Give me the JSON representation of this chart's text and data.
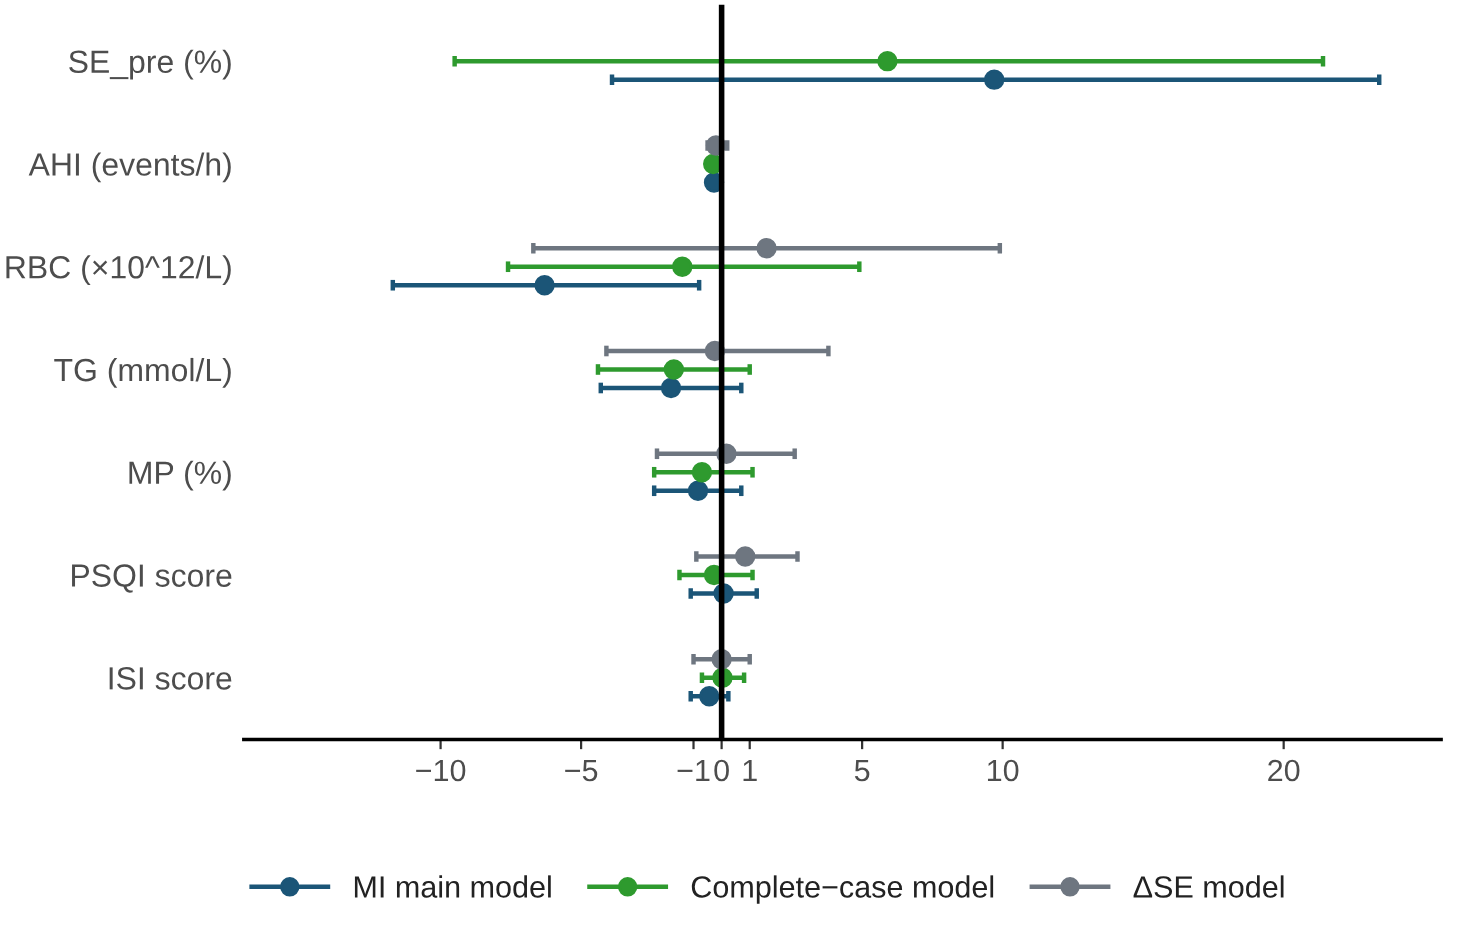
{
  "chart_data": {
    "type": "scatter",
    "orientation": "horizontal",
    "categories": [
      "SE_pre (%)",
      "AHI (events/h)",
      "RBC (×10^12/L)",
      "TG (mmol/L)",
      "MP (%)",
      "PSQI score",
      "ISI score"
    ],
    "series": [
      {
        "name": "MI main model",
        "color": "#1b5577",
        "values": [
          9.7,
          -0.27,
          -6.3,
          -1.8,
          -0.84,
          0.07,
          -0.44
        ],
        "errors": [
          [
            -3.9,
            23.4
          ],
          null,
          [
            -11.7,
            -0.8
          ],
          [
            -4.3,
            0.7
          ],
          [
            -2.4,
            0.7
          ],
          [
            -1.1,
            1.25
          ],
          [
            -1.1,
            0.24
          ]
        ]
      },
      {
        "name": "Complete−case model",
        "color": "#2e9a2e",
        "values": [
          5.9,
          -0.3,
          -1.4,
          -1.7,
          -0.7,
          -0.27,
          0.03
        ],
        "errors": [
          [
            -9.5,
            21.4
          ],
          null,
          [
            -7.6,
            4.9
          ],
          [
            -4.4,
            1.0
          ],
          [
            -2.4,
            1.1
          ],
          [
            -1.5,
            1.1
          ],
          [
            -0.7,
            0.8
          ]
        ]
      },
      {
        "name": "ΔSE model",
        "color": "#6e7680",
        "values": [
          null,
          -0.2,
          1.6,
          -0.24,
          0.17,
          0.84,
          0.0
        ],
        "errors": [
          null,
          [
            -0.5,
            0.2
          ],
          [
            -6.7,
            9.9
          ],
          [
            -4.1,
            3.8
          ],
          [
            -2.3,
            2.6
          ],
          [
            -0.9,
            2.7
          ],
          [
            -1.0,
            1.0
          ]
        ]
      }
    ],
    "xlim": [
      -17,
      25.6
    ],
    "xticks": [
      {
        "value": -10,
        "label": "−10"
      },
      {
        "value": -5,
        "label": "−5"
      },
      {
        "value": -1,
        "label": "−1"
      },
      0,
      1,
      5,
      10,
      20
    ],
    "ref_lines": [
      {
        "axis": "x",
        "value": 0,
        "color": "#000000"
      }
    ],
    "marker": "circle",
    "grid": false,
    "legend": "bottom"
  }
}
